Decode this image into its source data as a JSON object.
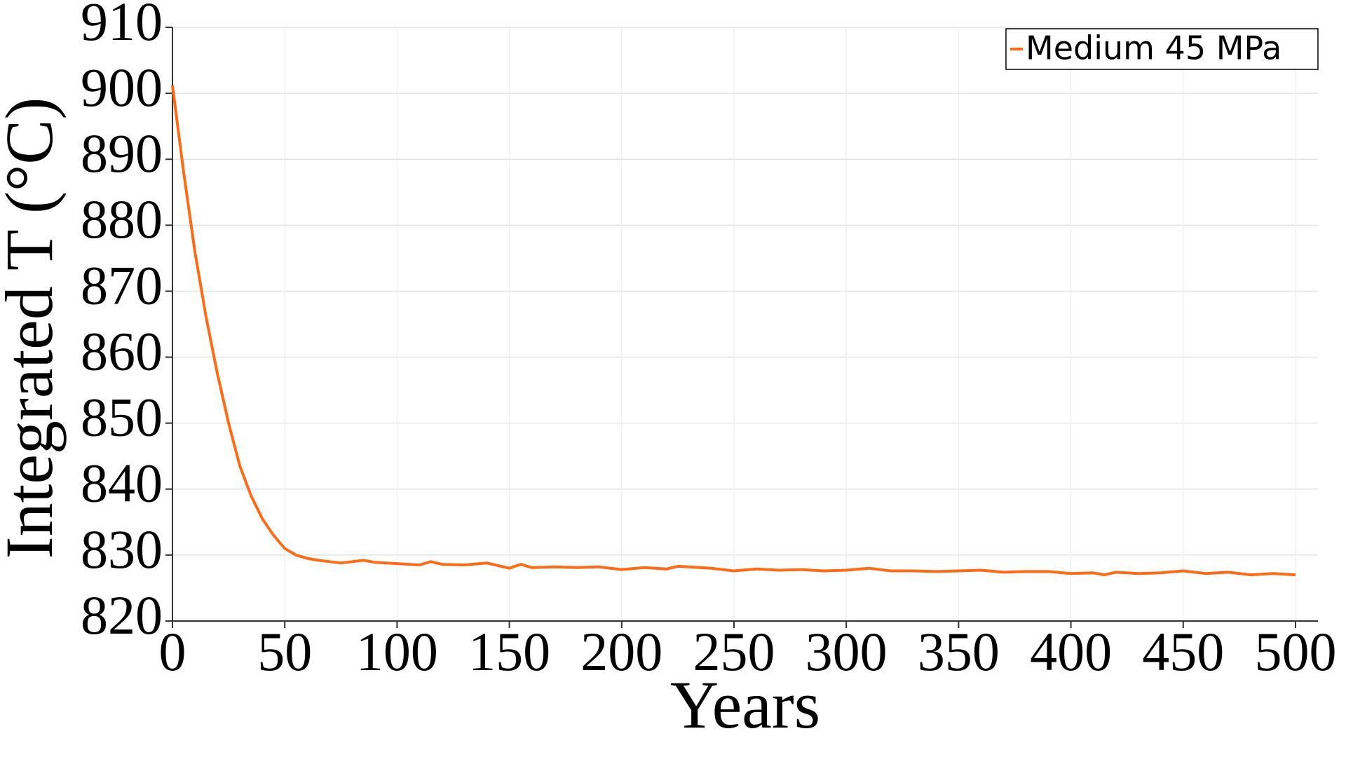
{
  "chart_data": {
    "type": "line",
    "xlabel": "Years",
    "ylabel": "Integrated T (°C)",
    "x": [
      0,
      5,
      10,
      15,
      20,
      25,
      30,
      35,
      40,
      45,
      50,
      55,
      60,
      65,
      70,
      75,
      80,
      85,
      90,
      100,
      110,
      115,
      120,
      130,
      140,
      150,
      155,
      160,
      170,
      180,
      190,
      200,
      210,
      220,
      225,
      240,
      250,
      260,
      270,
      280,
      290,
      300,
      310,
      320,
      330,
      340,
      350,
      360,
      370,
      380,
      390,
      400,
      410,
      415,
      420,
      430,
      440,
      450,
      460,
      470,
      480,
      490,
      500
    ],
    "series": [
      {
        "name": "Medium 45 MPa",
        "color": "#ff6a14",
        "values": [
          901.2,
          888,
          876,
          866,
          857.5,
          850,
          843.5,
          839,
          835.5,
          833,
          831,
          830,
          829.5,
          829.2,
          829,
          828.8,
          829,
          829.2,
          828.9,
          828.7,
          828.5,
          829,
          828.6,
          828.5,
          828.8,
          828,
          828.6,
          828.1,
          828.2,
          828.1,
          828.2,
          827.8,
          828.1,
          827.9,
          828.3,
          828,
          827.6,
          827.9,
          827.7,
          827.8,
          827.6,
          827.7,
          828,
          827.6,
          827.6,
          827.5,
          827.6,
          827.7,
          827.4,
          827.5,
          827.5,
          827.2,
          827.3,
          827,
          827.4,
          827.2,
          827.3,
          827.6,
          827.2,
          827.4,
          827,
          827.2,
          827
        ]
      }
    ],
    "xlim": [
      0,
      510
    ],
    "ylim": [
      820,
      910
    ],
    "xticks": [
      0,
      50,
      100,
      150,
      200,
      250,
      300,
      350,
      400,
      450,
      500
    ],
    "yticks": [
      820,
      830,
      840,
      850,
      860,
      870,
      880,
      890,
      900,
      910
    ],
    "grid": true,
    "legend": "upper right"
  }
}
